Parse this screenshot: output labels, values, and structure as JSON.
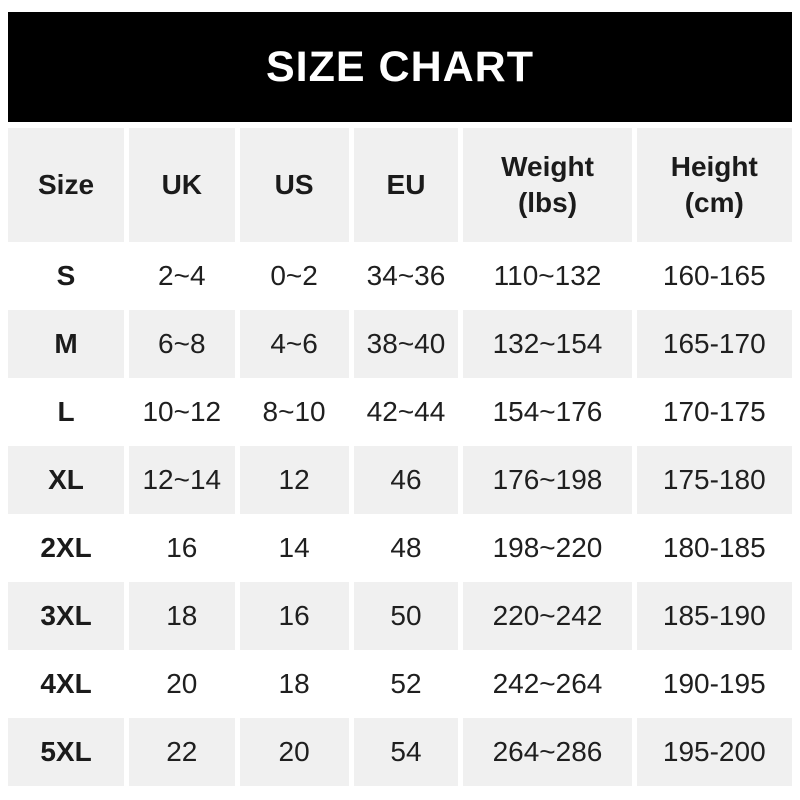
{
  "banner": {
    "title": "SIZE CHART",
    "background_color": "#000000",
    "text_color": "#ffffff"
  },
  "colors": {
    "page_background": "#ffffff",
    "stripe": "#f0f0f0",
    "table_text": "#1f1f1f"
  },
  "chart_data": {
    "type": "table",
    "title": "SIZE CHART",
    "columns": [
      "Size",
      "UK",
      "US",
      "EU",
      "Weight\n(lbs)",
      "Height\n(cm)"
    ],
    "rows": [
      [
        "S",
        "2~4",
        "0~2",
        "34~36",
        "110~132",
        "160-165"
      ],
      [
        "M",
        "6~8",
        "4~6",
        "38~40",
        "132~154",
        "165-170"
      ],
      [
        "L",
        "10~12",
        "8~10",
        "42~44",
        "154~176",
        "170-175"
      ],
      [
        "XL",
        "12~14",
        "12",
        "46",
        "176~198",
        "175-180"
      ],
      [
        "2XL",
        "16",
        "14",
        "48",
        "198~220",
        "180-185"
      ],
      [
        "3XL",
        "18",
        "16",
        "50",
        "220~242",
        "185-190"
      ],
      [
        "4XL",
        "20",
        "18",
        "52",
        "242~264",
        "190-195"
      ],
      [
        "5XL",
        "22",
        "20",
        "54",
        "264~286",
        "195-200"
      ]
    ],
    "layout_hints": {
      "striped_rows": true,
      "stripe_pattern": "header, M, XL, 3XL, 5XL shaded",
      "column_separators": "white gaps"
    }
  }
}
